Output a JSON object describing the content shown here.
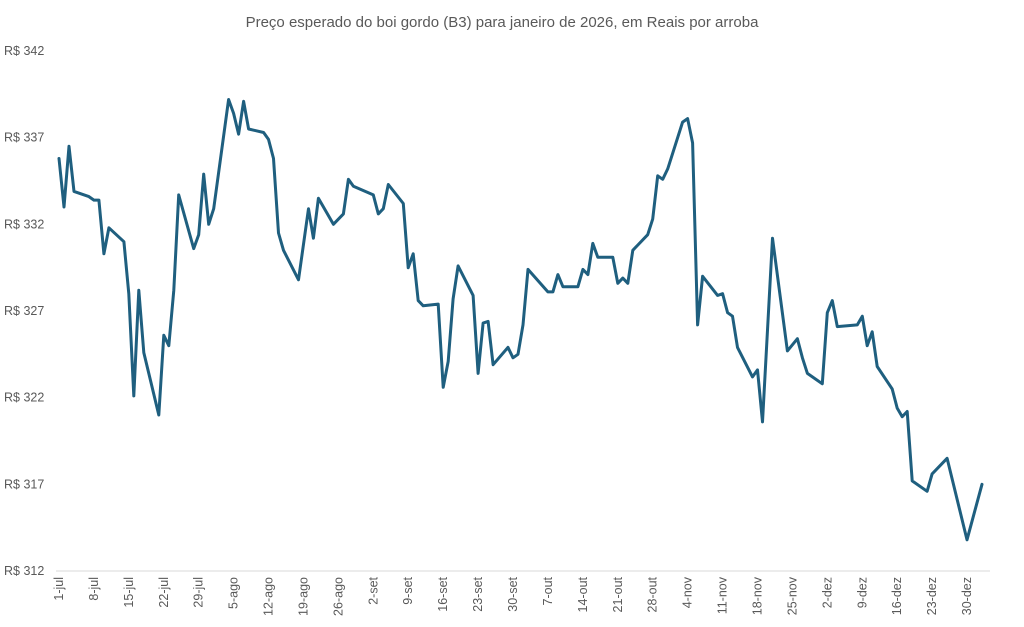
{
  "chart_data": {
    "type": "line",
    "title": "Preço esperado do boi gordo (B3) para janeiro de 2026, em Reais por arroba",
    "xlabel": "",
    "ylabel": "",
    "ylim": [
      312,
      342
    ],
    "yticks": [
      312,
      317,
      322,
      327,
      332,
      337,
      342
    ],
    "ytick_prefix": "R$ ",
    "xlim": [
      "2025-07-01",
      "2026-01-02"
    ],
    "xtick_labels": [
      "1-jul",
      "8-jul",
      "15-jul",
      "22-jul",
      "29-jul",
      "5-ago",
      "12-ago",
      "19-ago",
      "26-ago",
      "2-set",
      "9-set",
      "16-set",
      "23-set",
      "30-set",
      "7-out",
      "14-out",
      "21-out",
      "28-out",
      "4-nov",
      "11-nov",
      "18-nov",
      "25-nov",
      "2-dez",
      "9-dez",
      "16-dez",
      "23-dez",
      "30-dez"
    ],
    "xtick_dates": [
      "2025-07-01",
      "2025-07-08",
      "2025-07-15",
      "2025-07-22",
      "2025-07-29",
      "2025-08-05",
      "2025-08-12",
      "2025-08-19",
      "2025-08-26",
      "2025-09-02",
      "2025-09-09",
      "2025-09-16",
      "2025-09-23",
      "2025-09-30",
      "2025-10-07",
      "2025-10-14",
      "2025-10-21",
      "2025-10-28",
      "2025-11-04",
      "2025-11-11",
      "2025-11-18",
      "2025-11-25",
      "2025-12-02",
      "2025-12-09",
      "2025-12-16",
      "2025-12-23",
      "2025-12-30"
    ],
    "grid": false,
    "line_color": "#1f5f7f",
    "series": [
      {
        "points": [
          [
            "2025-07-01",
            335.8
          ],
          [
            "2025-07-02",
            333.0
          ],
          [
            "2025-07-03",
            336.5
          ],
          [
            "2025-07-04",
            333.9
          ],
          [
            "2025-07-07",
            333.6
          ],
          [
            "2025-07-08",
            333.4
          ],
          [
            "2025-07-09",
            333.4
          ],
          [
            "2025-07-10",
            330.3
          ],
          [
            "2025-07-11",
            331.8
          ],
          [
            "2025-07-14",
            331.0
          ],
          [
            "2025-07-15",
            328.0
          ],
          [
            "2025-07-16",
            322.1
          ],
          [
            "2025-07-17",
            328.2
          ],
          [
            "2025-07-18",
            324.6
          ],
          [
            "2025-07-21",
            321.0
          ],
          [
            "2025-07-22",
            325.6
          ],
          [
            "2025-07-23",
            325.0
          ],
          [
            "2025-07-24",
            328.2
          ],
          [
            "2025-07-25",
            333.7
          ],
          [
            "2025-07-28",
            330.6
          ],
          [
            "2025-07-29",
            331.4
          ],
          [
            "2025-07-30",
            334.9
          ],
          [
            "2025-07-31",
            332.0
          ],
          [
            "2025-08-01",
            332.9
          ],
          [
            "2025-08-04",
            339.2
          ],
          [
            "2025-08-05",
            338.4
          ],
          [
            "2025-08-06",
            337.2
          ],
          [
            "2025-08-07",
            339.1
          ],
          [
            "2025-08-08",
            337.5
          ],
          [
            "2025-08-11",
            337.3
          ],
          [
            "2025-08-12",
            336.9
          ],
          [
            "2025-08-13",
            335.8
          ],
          [
            "2025-08-14",
            331.5
          ],
          [
            "2025-08-15",
            330.5
          ],
          [
            "2025-08-18",
            328.8
          ],
          [
            "2025-08-20",
            332.9
          ],
          [
            "2025-08-21",
            331.2
          ],
          [
            "2025-08-22",
            333.5
          ],
          [
            "2025-08-25",
            332.0
          ],
          [
            "2025-08-27",
            332.6
          ],
          [
            "2025-08-28",
            334.6
          ],
          [
            "2025-08-29",
            334.2
          ],
          [
            "2025-09-02",
            333.7
          ],
          [
            "2025-09-03",
            332.6
          ],
          [
            "2025-09-04",
            332.9
          ],
          [
            "2025-09-05",
            334.3
          ],
          [
            "2025-09-08",
            333.2
          ],
          [
            "2025-09-09",
            329.5
          ],
          [
            "2025-09-10",
            330.3
          ],
          [
            "2025-09-11",
            327.6
          ],
          [
            "2025-09-12",
            327.3
          ],
          [
            "2025-09-15",
            327.4
          ],
          [
            "2025-09-16",
            322.6
          ],
          [
            "2025-09-17",
            324.1
          ],
          [
            "2025-09-18",
            327.7
          ],
          [
            "2025-09-19",
            329.6
          ],
          [
            "2025-09-22",
            327.9
          ],
          [
            "2025-09-23",
            323.4
          ],
          [
            "2025-09-24",
            326.3
          ],
          [
            "2025-09-25",
            326.4
          ],
          [
            "2025-09-26",
            323.9
          ],
          [
            "2025-09-29",
            324.9
          ],
          [
            "2025-09-30",
            324.3
          ],
          [
            "2025-10-01",
            324.5
          ],
          [
            "2025-10-02",
            326.2
          ],
          [
            "2025-10-03",
            329.4
          ],
          [
            "2025-10-07",
            328.1
          ],
          [
            "2025-10-08",
            328.1
          ],
          [
            "2025-10-09",
            329.1
          ],
          [
            "2025-10-10",
            328.4
          ],
          [
            "2025-10-13",
            328.4
          ],
          [
            "2025-10-14",
            329.4
          ],
          [
            "2025-10-15",
            329.1
          ],
          [
            "2025-10-16",
            330.9
          ],
          [
            "2025-10-17",
            330.1
          ],
          [
            "2025-10-20",
            330.1
          ],
          [
            "2025-10-21",
            328.6
          ],
          [
            "2025-10-22",
            328.9
          ],
          [
            "2025-10-23",
            328.6
          ],
          [
            "2025-10-24",
            330.5
          ],
          [
            "2025-10-27",
            331.4
          ],
          [
            "2025-10-28",
            332.3
          ],
          [
            "2025-10-29",
            334.8
          ],
          [
            "2025-10-30",
            334.6
          ],
          [
            "2025-10-31",
            335.2
          ],
          [
            "2025-11-03",
            337.9
          ],
          [
            "2025-11-04",
            338.1
          ],
          [
            "2025-11-05",
            336.7
          ],
          [
            "2025-11-06",
            326.2
          ],
          [
            "2025-11-07",
            329.0
          ],
          [
            "2025-11-10",
            327.9
          ],
          [
            "2025-11-11",
            328.0
          ],
          [
            "2025-11-12",
            326.9
          ],
          [
            "2025-11-13",
            326.7
          ],
          [
            "2025-11-14",
            324.9
          ],
          [
            "2025-11-17",
            323.2
          ],
          [
            "2025-11-18",
            323.6
          ],
          [
            "2025-11-19",
            320.6
          ],
          [
            "2025-11-21",
            331.2
          ],
          [
            "2025-11-24",
            324.7
          ],
          [
            "2025-11-26",
            325.4
          ],
          [
            "2025-11-27",
            324.3
          ],
          [
            "2025-11-28",
            323.4
          ],
          [
            "2025-12-01",
            322.8
          ],
          [
            "2025-12-02",
            326.9
          ],
          [
            "2025-12-03",
            327.6
          ],
          [
            "2025-12-04",
            326.1
          ],
          [
            "2025-12-08",
            326.2
          ],
          [
            "2025-12-09",
            326.7
          ],
          [
            "2025-12-10",
            325.0
          ],
          [
            "2025-12-11",
            325.8
          ],
          [
            "2025-12-12",
            323.8
          ],
          [
            "2025-12-15",
            322.5
          ],
          [
            "2025-12-16",
            321.4
          ],
          [
            "2025-12-17",
            320.9
          ],
          [
            "2025-12-18",
            321.2
          ],
          [
            "2025-12-19",
            317.2
          ],
          [
            "2025-12-22",
            316.6
          ],
          [
            "2025-12-23",
            317.6
          ],
          [
            "2025-12-26",
            318.5
          ],
          [
            "2025-12-30",
            313.8
          ],
          [
            "2026-01-02",
            317.0
          ]
        ]
      }
    ]
  }
}
